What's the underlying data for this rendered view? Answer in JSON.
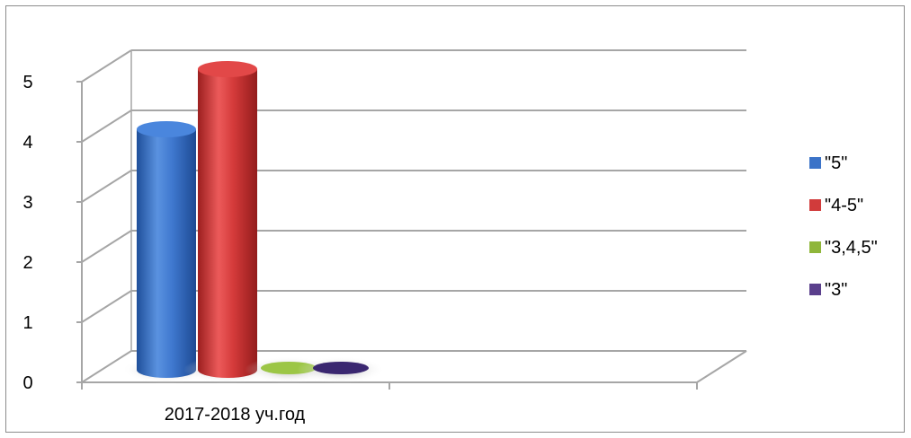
{
  "chart_data": {
    "type": "bar",
    "title": "",
    "xlabel": "",
    "ylabel": "",
    "categories": [
      "2017-2018 уч.год"
    ],
    "series": [
      {
        "name": "\"5\"",
        "values": [
          4
        ]
      },
      {
        "name": "\"4-5\"",
        "values": [
          5
        ]
      },
      {
        "name": "\"3,4,5\"",
        "values": [
          0
        ]
      },
      {
        "name": "\"3\"",
        "values": [
          0
        ]
      }
    ],
    "ylim": [
      0,
      5
    ],
    "yticks": [
      "0",
      "1",
      "2",
      "3",
      "4",
      "5"
    ],
    "grid": true,
    "legend_position": "right",
    "style": "3d-cylinder",
    "colors": [
      "#3b73c8",
      "#d13b3b",
      "#8fb63a",
      "#5a3f8c"
    ]
  }
}
